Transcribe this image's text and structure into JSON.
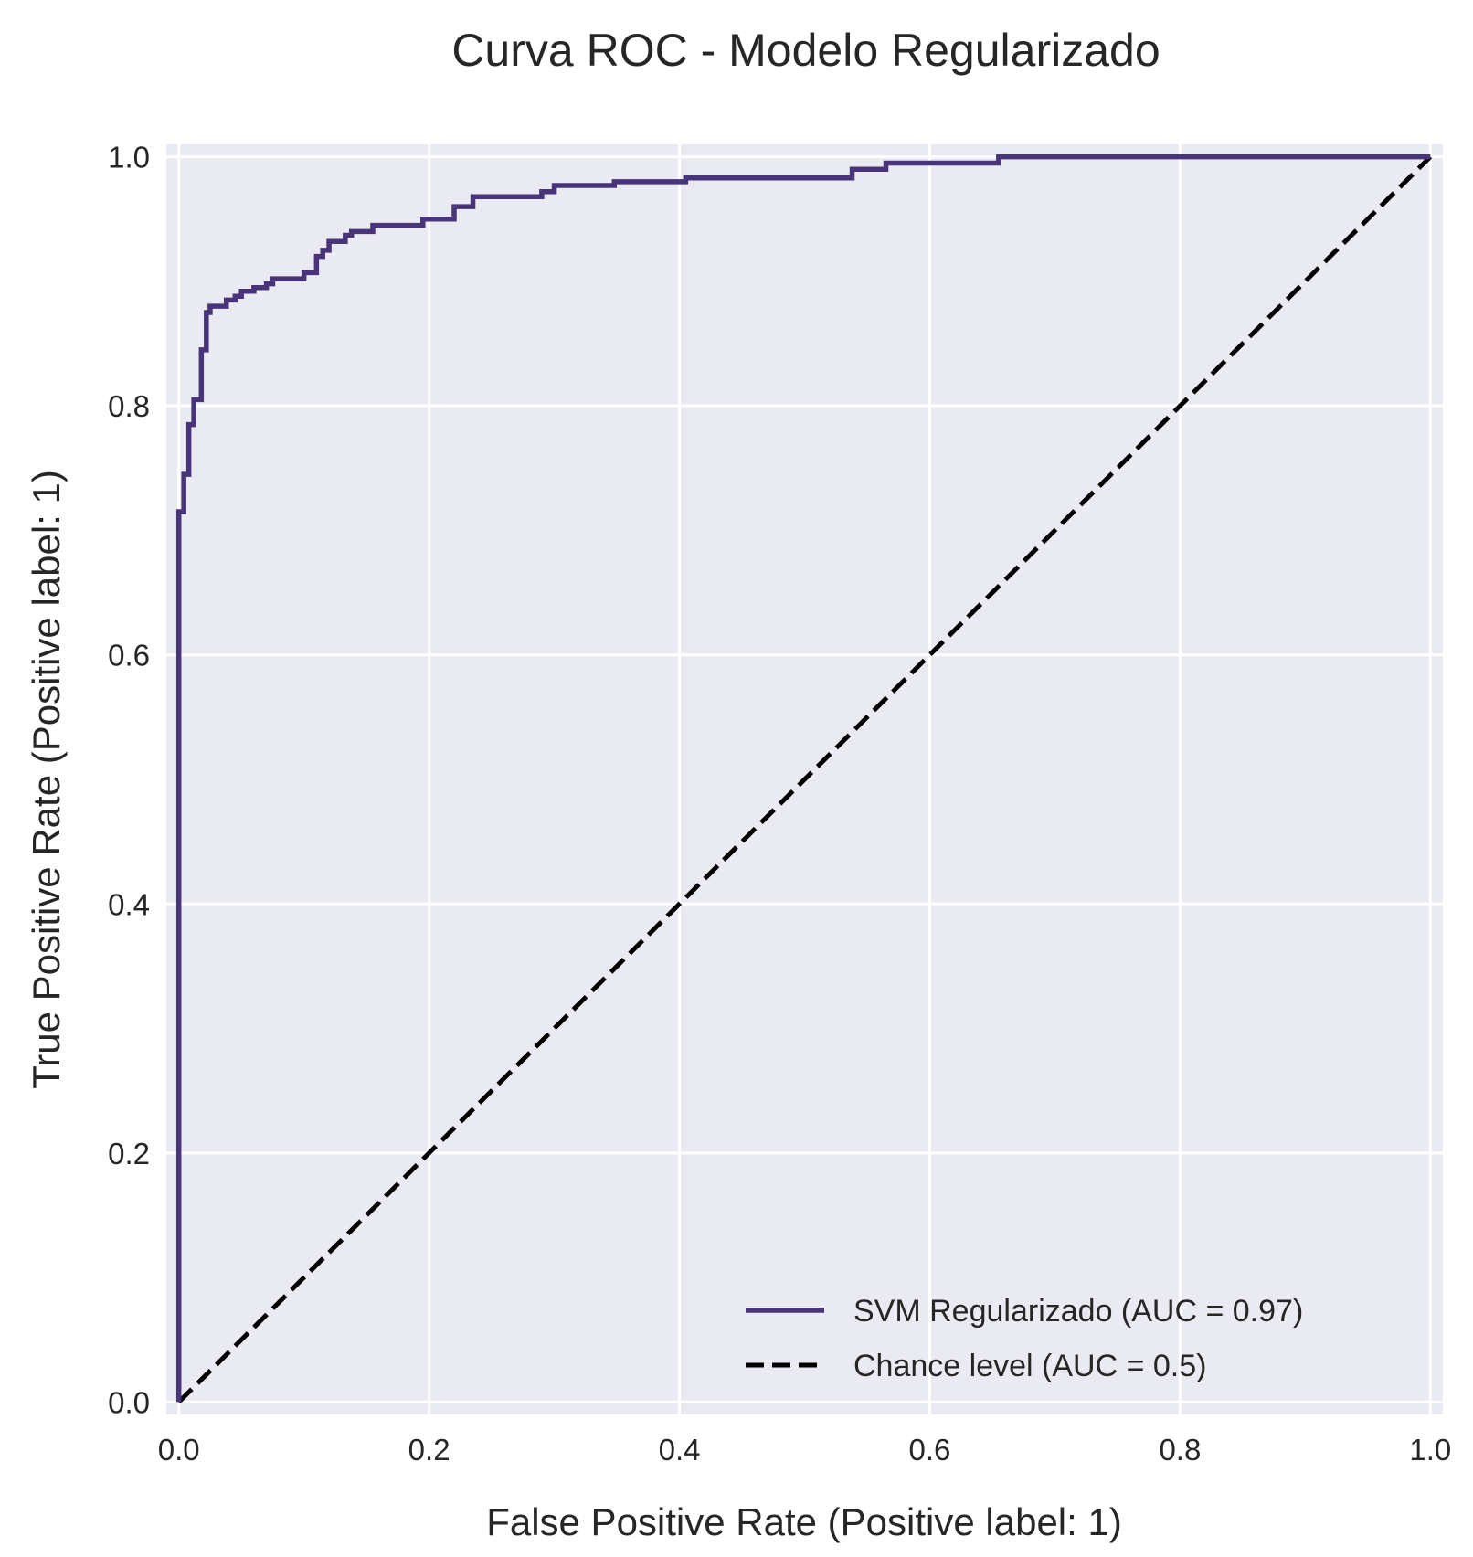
{
  "chart_data": {
    "type": "line",
    "title": "Curva ROC - Modelo Regularizado",
    "xlabel": "False Positive Rate (Positive label: 1)",
    "ylabel": "True Positive Rate (Positive label: 1)",
    "xlim": [
      -0.01,
      1.01
    ],
    "ylim": [
      -0.01,
      1.01
    ],
    "xticks": [
      "0.0",
      "0.2",
      "0.4",
      "0.6",
      "0.8",
      "1.0"
    ],
    "yticks": [
      "0.0",
      "0.2",
      "0.4",
      "0.6",
      "0.8",
      "1.0"
    ],
    "grid": true,
    "legend_location": "lower right",
    "background_color": "#eaeaf2",
    "grid_color": "#ffffff",
    "series": [
      {
        "name": "SVM Regularizado (AUC = 0.97)",
        "color": "#483479",
        "style": "solid",
        "x": [
          0.0,
          0.0,
          0.004,
          0.004,
          0.008,
          0.008,
          0.012,
          0.012,
          0.018,
          0.018,
          0.022,
          0.022,
          0.025,
          0.025,
          0.038,
          0.038,
          0.045,
          0.045,
          0.05,
          0.05,
          0.06,
          0.06,
          0.07,
          0.07,
          0.075,
          0.075,
          0.1,
          0.1,
          0.11,
          0.11,
          0.115,
          0.115,
          0.12,
          0.12,
          0.133,
          0.133,
          0.138,
          0.138,
          0.155,
          0.155,
          0.195,
          0.195,
          0.22,
          0.22,
          0.235,
          0.235,
          0.29,
          0.29,
          0.3,
          0.3,
          0.348,
          0.348,
          0.405,
          0.405,
          0.538,
          0.538,
          0.565,
          0.565,
          0.655,
          0.655,
          1.0
        ],
        "y": [
          0.0,
          0.715,
          0.715,
          0.745,
          0.745,
          0.785,
          0.785,
          0.805,
          0.805,
          0.845,
          0.845,
          0.875,
          0.875,
          0.88,
          0.88,
          0.885,
          0.885,
          0.888,
          0.888,
          0.892,
          0.892,
          0.895,
          0.895,
          0.898,
          0.898,
          0.902,
          0.902,
          0.907,
          0.907,
          0.92,
          0.92,
          0.925,
          0.925,
          0.932,
          0.932,
          0.937,
          0.937,
          0.94,
          0.94,
          0.945,
          0.945,
          0.95,
          0.95,
          0.96,
          0.96,
          0.968,
          0.968,
          0.972,
          0.972,
          0.977,
          0.977,
          0.98,
          0.98,
          0.983,
          0.983,
          0.99,
          0.99,
          0.995,
          0.995,
          1.0,
          1.0
        ]
      },
      {
        "name": "Chance level (AUC = 0.5)",
        "color": "#000000",
        "style": "dashed",
        "x": [
          0.0,
          1.0
        ],
        "y": [
          0.0,
          1.0
        ]
      }
    ]
  }
}
